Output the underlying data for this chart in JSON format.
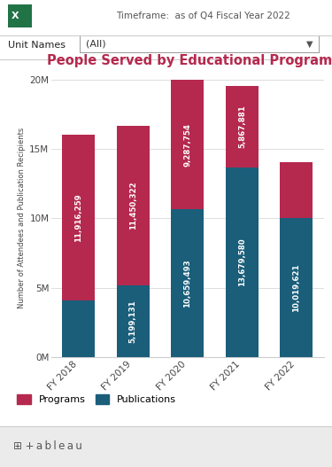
{
  "title": "People Served by Educational Programs, All",
  "timeframe_text": "Timeframe:  as of Q4 Fiscal Year 2022",
  "unit_label": "Unit Names",
  "unit_value": "(All)",
  "ylabel": "Number of Attendees and Publication Recipients",
  "categories": [
    "FY 2018",
    "FY 2019",
    "FY 2020",
    "FY 2021",
    "FY 2022"
  ],
  "programs": [
    11916259,
    11450322,
    9287754,
    5867881,
    4000000
  ],
  "publications": [
    4086370,
    5199131,
    10659493,
    13679580,
    10019621
  ],
  "programs_color": "#b5294e",
  "publications_color": "#1a5e7a",
  "bar_width": 0.6,
  "ylim": [
    0,
    20000000
  ],
  "yticks": [
    0,
    5000000,
    10000000,
    15000000,
    20000000
  ],
  "ytick_labels": [
    "0M",
    "5M",
    "10M",
    "15M",
    "20M"
  ],
  "background_color": "#ffffff",
  "title_color": "#b5294e",
  "title_fontsize": 10.5,
  "tick_fontsize": 7.5,
  "legend_fontsize": 8,
  "bar_label_fontsize": 6.2,
  "programs_labels": [
    "11,916,259",
    "11,450,322",
    "9,287,754",
    "5,867,881",
    ""
  ],
  "publications_labels": [
    "",
    "5,199,131",
    "10,659,493",
    "13,679,580",
    "10,019,621"
  ],
  "footer_bg": "#eeeeee"
}
